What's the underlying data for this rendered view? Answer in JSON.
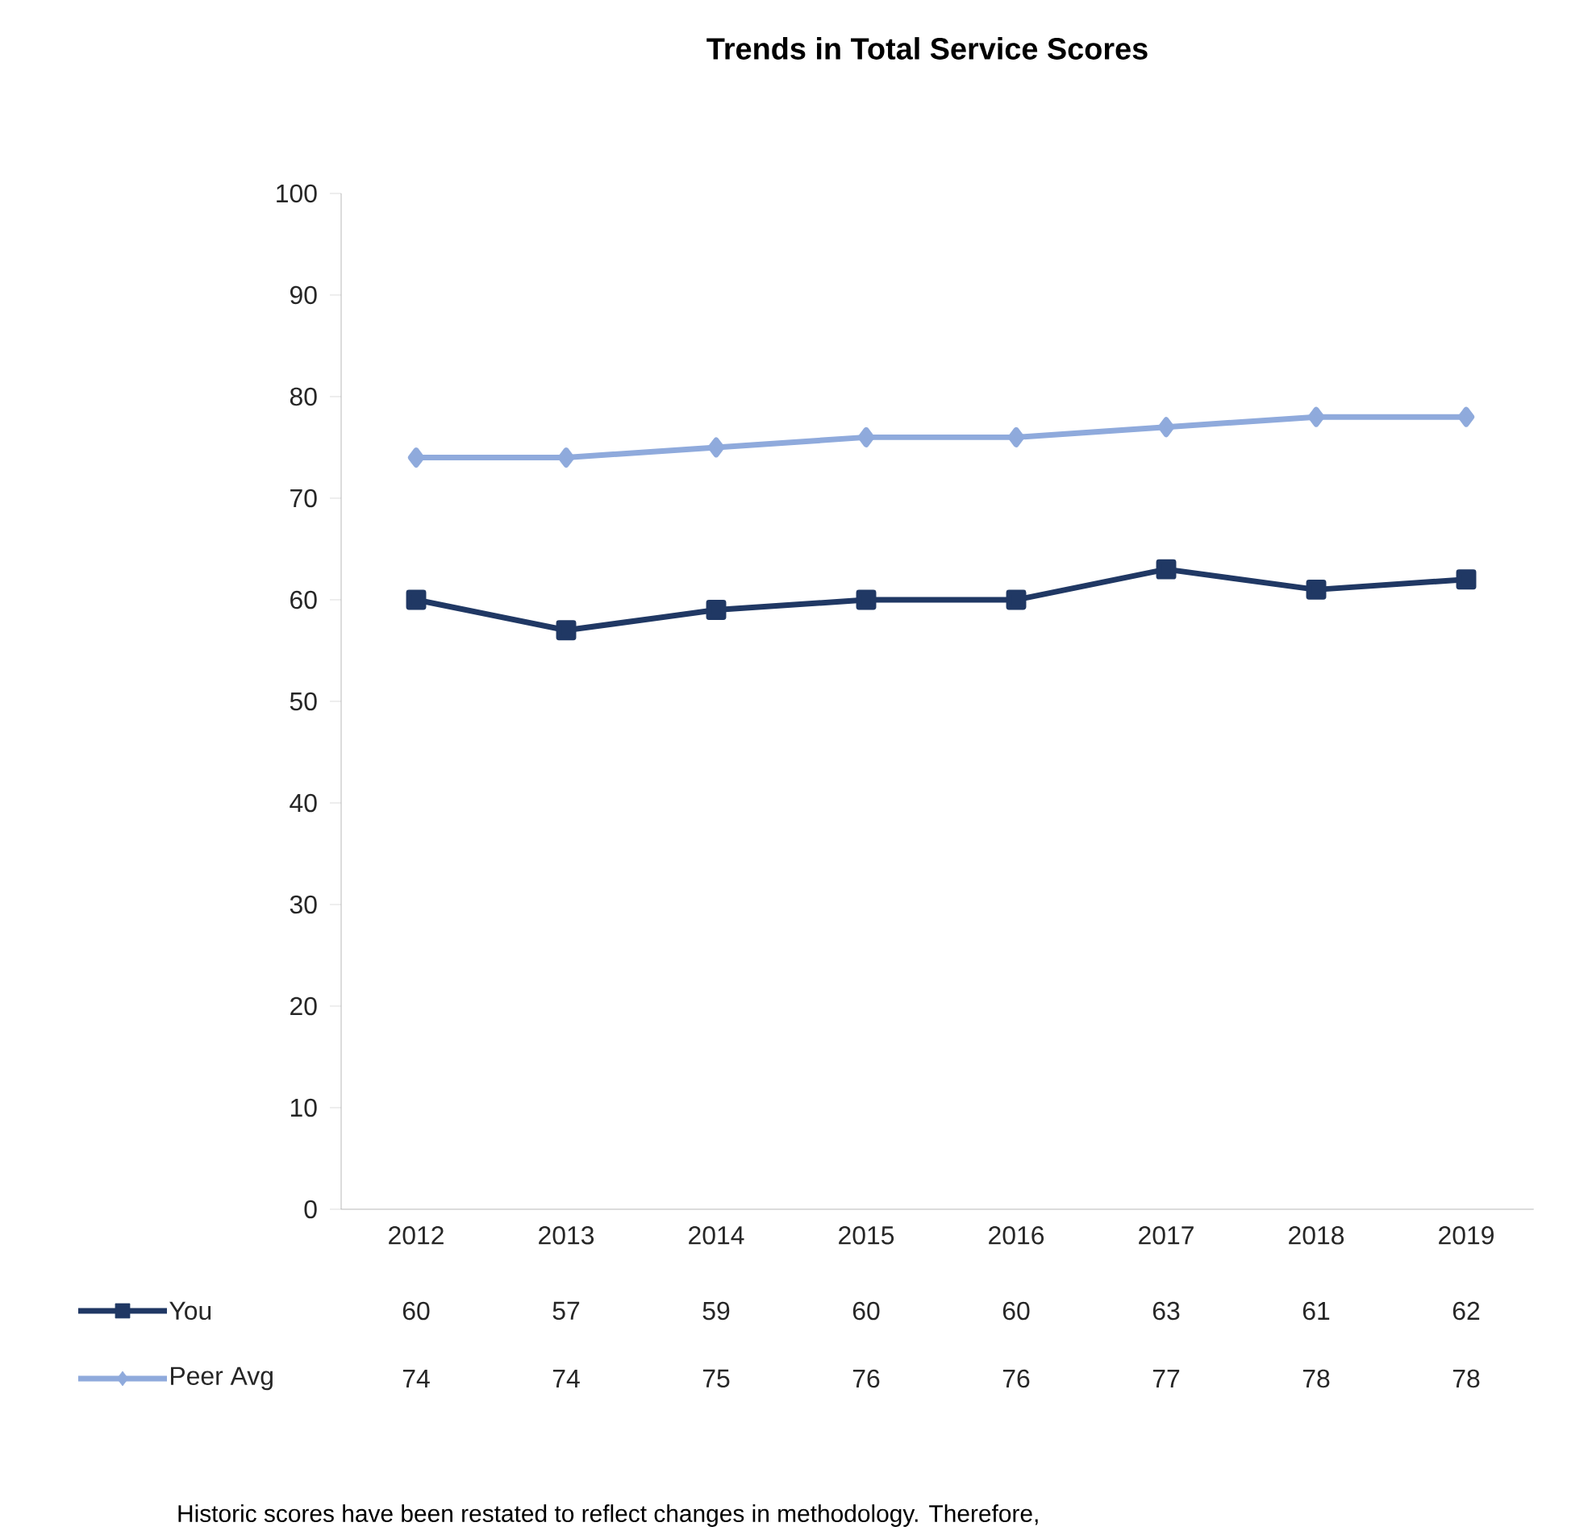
{
  "chart_data": {
    "type": "line",
    "title": "Trends in Total Service Scores",
    "categories": [
      "2012",
      "2013",
      "2014",
      "2015",
      "2016",
      "2017",
      "2018",
      "2019"
    ],
    "series": [
      {
        "name": "You",
        "color": "#203864",
        "marker": "square",
        "values": [
          60,
          57,
          59,
          60,
          60,
          63,
          61,
          62
        ]
      },
      {
        "name": "Peer Avg",
        "color": "#8faadc",
        "marker": "diamond",
        "values": [
          74,
          74,
          75,
          76,
          76,
          77,
          78,
          78
        ]
      }
    ],
    "ylim": [
      0,
      100
    ],
    "yticks": [
      0,
      10,
      20,
      30,
      40,
      50,
      60,
      70,
      80,
      90,
      100
    ],
    "data_labels": true,
    "legend": "bottom",
    "grid": false,
    "line_style": "solid",
    "annotations": [
      "Historic scores have been restated to reflect changes in methodology. Therefore,"
    ]
  }
}
